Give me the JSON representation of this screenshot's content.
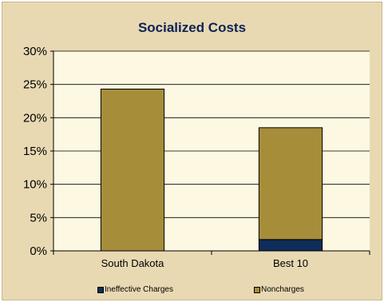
{
  "colors": {
    "background": "#e8d9b3",
    "plot_area": "#fdf8e2",
    "ineffective_charges": "#0f2d5a",
    "noncharges": "#a68d3a"
  },
  "chart_data": {
    "type": "bar",
    "stacked": true,
    "title": "Socialized Costs",
    "xlabel": "",
    "ylabel": "",
    "categories": [
      "South Dakota",
      "Best 10"
    ],
    "series": [
      {
        "name": "Ineffective Charges",
        "values": [
          0,
          1.7
        ]
      },
      {
        "name": "Noncharges",
        "values": [
          24.3,
          16.8
        ]
      }
    ],
    "ylim": [
      0,
      30
    ],
    "yticks": [
      "0%",
      "5%",
      "10%",
      "15%",
      "20%",
      "25%",
      "30%"
    ],
    "grid": true,
    "legend_position": "bottom"
  }
}
